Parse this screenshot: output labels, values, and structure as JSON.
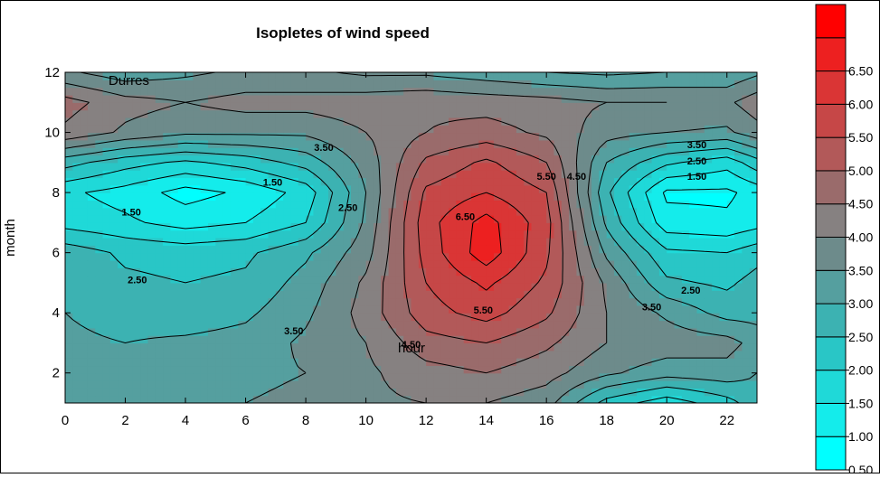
{
  "chart_data": {
    "type": "heatmap",
    "subtype": "filled-contour",
    "title": "Isopletes of wind speed",
    "annotation": "Durres",
    "xlabel": "hour",
    "ylabel": "month",
    "xlim": [
      0,
      23
    ],
    "ylim": [
      1,
      12
    ],
    "x_ticks": [
      0,
      2,
      4,
      6,
      8,
      10,
      12,
      14,
      16,
      18,
      20,
      22
    ],
    "y_ticks": [
      2,
      4,
      6,
      8,
      10,
      12
    ],
    "x_tick_labels": [
      "0",
      "2",
      "4",
      "6",
      "8",
      "10",
      "12",
      "14",
      "16",
      "18",
      "20",
      "22"
    ],
    "y_tick_labels": [
      "2",
      "4",
      "6",
      "8",
      "10",
      "12"
    ],
    "hours": [
      0,
      2,
      4,
      6,
      8,
      10,
      12,
      14,
      16,
      18,
      20,
      22,
      23
    ],
    "months": [
      1,
      2,
      3,
      4,
      5,
      6,
      7,
      8,
      9,
      10,
      11,
      12
    ],
    "values": [
      [
        3.3,
        3.3,
        3.4,
        3.5,
        3.6,
        3.9,
        4.0,
        4.0,
        3.7,
        2.3,
        1.7,
        2.3,
        2.8
      ],
      [
        3.2,
        3.3,
        3.3,
        3.4,
        3.5,
        3.9,
        4.3,
        4.5,
        4.2,
        3.6,
        3.2,
        3.3,
        3.0
      ],
      [
        3.1,
        3.0,
        3.1,
        3.2,
        3.6,
        4.0,
        4.8,
        5.0,
        4.6,
        4.0,
        3.8,
        3.7,
        3.3
      ],
      [
        3.0,
        2.8,
        2.7,
        2.9,
        3.4,
        4.2,
        5.3,
        5.7,
        5.1,
        4.0,
        3.4,
        2.8,
        2.8
      ],
      [
        2.9,
        2.6,
        2.5,
        2.6,
        3.2,
        4.1,
        5.5,
        6.1,
        5.4,
        3.9,
        2.6,
        2.4,
        2.7
      ],
      [
        2.8,
        2.4,
        2.3,
        2.4,
        2.9,
        3.8,
        5.7,
        6.8,
        5.6,
        3.4,
        2.1,
        2.0,
        2.3
      ],
      [
        1.8,
        1.6,
        1.3,
        1.5,
        2.0,
        3.6,
        5.8,
        6.7,
        5.7,
        2.9,
        1.2,
        1.1,
        1.3
      ],
      [
        1.6,
        1.3,
        0.8,
        1.1,
        1.7,
        3.5,
        5.6,
        6.0,
        5.5,
        2.6,
        0.9,
        0.9,
        1.2
      ],
      [
        2.7,
        2.2,
        1.9,
        2.2,
        2.7,
        3.7,
        5.1,
        5.6,
        5.0,
        3.0,
        2.1,
        1.7,
        2.3
      ],
      [
        4.4,
        3.9,
        3.6,
        3.6,
        3.6,
        4.0,
        4.5,
        4.7,
        4.4,
        3.7,
        3.5,
        3.4,
        3.8
      ],
      [
        4.7,
        4.2,
        4.0,
        4.2,
        4.2,
        4.3,
        4.4,
        4.3,
        4.2,
        4.0,
        4.0,
        3.9,
        4.3
      ],
      [
        3.6,
        3.2,
        3.4,
        3.6,
        3.6,
        3.4,
        3.4,
        3.2,
        3.0,
        2.9,
        3.0,
        3.1,
        3.4
      ]
    ],
    "levels": [
      0.5,
      1.0,
      1.5,
      2.0,
      2.5,
      3.0,
      3.5,
      4.0,
      4.5,
      5.0,
      5.5,
      6.0,
      6.5,
      7.0
    ],
    "level_colors": [
      "#00ffff",
      "#14eceb",
      "#1fd9d8",
      "#29c6c6",
      "#3cb2b2",
      "#559f9f",
      "#6d8b8b",
      "#868181",
      "#9a6b6b",
      "#b25959",
      "#c64747",
      "#da3535",
      "#ed2020",
      "#ff0000"
    ],
    "colorbar_labels": [
      "0.50",
      "1.00",
      "1.50",
      "2.00",
      "2.50",
      "3.00",
      "3.50",
      "4.00",
      "4.50",
      "5.00",
      "5.50",
      "6.00",
      "6.50"
    ],
    "contour_labels": [
      {
        "text": "3.50",
        "x": 8.6,
        "y": 9.5
      },
      {
        "text": "1.50",
        "x": 6.9,
        "y": 8.35
      },
      {
        "text": "1.50",
        "x": 2.2,
        "y": 7.35
      },
      {
        "text": "2.50",
        "x": 9.4,
        "y": 7.5
      },
      {
        "text": "2.50",
        "x": 2.4,
        "y": 5.1
      },
      {
        "text": "3.50",
        "x": 7.6,
        "y": 3.4
      },
      {
        "text": "6.50",
        "x": 13.3,
        "y": 7.2
      },
      {
        "text": "5.50",
        "x": 16.0,
        "y": 8.55
      },
      {
        "text": "4.50",
        "x": 17.0,
        "y": 8.55
      },
      {
        "text": "5.50",
        "x": 13.9,
        "y": 4.1
      },
      {
        "text": "4.50",
        "x": 11.5,
        "y": 2.95
      },
      {
        "text": "3.50",
        "x": 21.0,
        "y": 9.6
      },
      {
        "text": "2.50",
        "x": 21.0,
        "y": 9.05
      },
      {
        "text": "1.50",
        "x": 21.0,
        "y": 8.55
      },
      {
        "text": "2.50",
        "x": 20.8,
        "y": 4.75
      },
      {
        "text": "3.50",
        "x": 19.5,
        "y": 4.2
      }
    ],
    "grid": false,
    "legend": "colorbar-right"
  }
}
